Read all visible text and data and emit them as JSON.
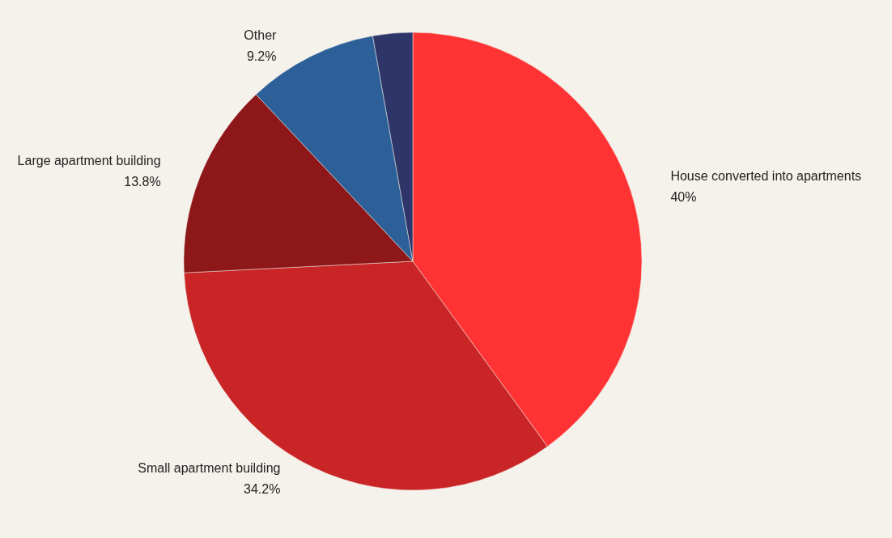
{
  "chart_data": {
    "type": "pie",
    "categories": [
      "House converted into apartments",
      "Small apartment building",
      "Large apartment building",
      "Other",
      null
    ],
    "values": [
      40,
      34.2,
      13.8,
      9.2,
      2.8
    ],
    "value_labels": [
      "40%",
      "34.2%",
      "13.8%",
      "9.2%",
      null
    ],
    "colors": [
      "#ff3333",
      "#c92426",
      "#8e1719",
      "#2d6099",
      "#2e3669"
    ],
    "legend": false
  }
}
